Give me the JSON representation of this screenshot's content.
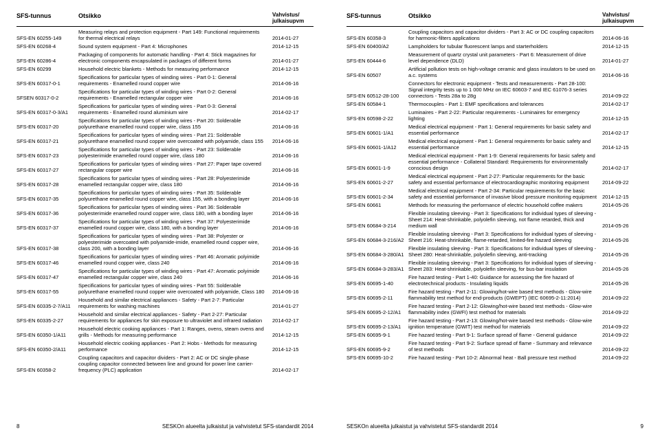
{
  "headers": {
    "code": "SFS-tunnus",
    "title": "Otsikko",
    "date_line1": "Vahvistus/",
    "date_line2": "julkaisupvm"
  },
  "footer_text": "SESKOn alueelta julkaistut ja vahvistetut SFS-standardit 2014",
  "left_page_num": "8",
  "right_page_num": "9",
  "left": [
    {
      "c": "SFS-EN 60255-149",
      "t": "Measuring relays and protection equipment - Part 149: Functional requirements for thermal electrical relays",
      "d": "2014-01-27"
    },
    {
      "c": "SFS-EN 60268-4",
      "t": "Sound system equipment - Part 4: Microphones",
      "d": "2014-12-15"
    },
    {
      "c": "SFS-EN 60286-4",
      "t": "Packaging of components for automatic handling - Part 4: Stick magazines for electronic components encapsulated in packages of different forms",
      "d": "2014-01-27"
    },
    {
      "c": "SFS-EN 60299",
      "t": "Household electric blankets - Methods for measuring performance",
      "d": "2014-12-15"
    },
    {
      "c": "SFS-EN 60317-0-1",
      "t": "Specifications for particular types of winding wires - Part 0-1: General requirements - Enamelled round copper wire",
      "d": "2014-06-16"
    },
    {
      "c": "SFSEN 60317-0-2",
      "t": "Specifications for particular types of winding wires - Part 0-2: General requirements - Enamelled rectangular copper wire",
      "d": "2014-06-16"
    },
    {
      "c": "SFS-EN 60317-0-3/A1",
      "t": "Specifications for particular types of winding wires - Part 0-3: General requirements - Enamelled round aluminium wire",
      "d": "2014-02-17"
    },
    {
      "c": "SFS-EN 60317-20",
      "t": "Specifications for particular types of winding wires - Part 20: Solderable polyurethane enamelled round copper wire, class 155",
      "d": "2014-06-16"
    },
    {
      "c": "SFS-EN 60317-21",
      "t": "Specifications for particular types of winding wires - Part 21: Solderable polyurethane enamelled round copper wire overcoated with polyamide, class 155",
      "d": "2014-06-16"
    },
    {
      "c": "SFS-EN 60317-23",
      "t": "Specifications for particular types of winding wires - Part 23: Solderable polyesterimide enamelled round copper wire, class 180",
      "d": "2014-06-16"
    },
    {
      "c": "SFS-EN 60317-27",
      "t": "Specifications for particular types of winding wires - Part 27: Paper tape covered rectangular copper wire",
      "d": "2014-06-16"
    },
    {
      "c": "SFS-EN 60317-28",
      "t": "Specifications for particular types of winding wires - Part 28: Polyesterimide enamelled rectangular copper wire, class 180",
      "d": "2014-06-16"
    },
    {
      "c": "SFS-EN 60317-35",
      "t": "Specifications for particular types of winding wires - Part 35: Solderable polyurethane enamelled round copper wire, class 155, with a bonding layer",
      "d": "2014-06-16"
    },
    {
      "c": "SFS-EN 60317-36",
      "t": "Specifications for particular types of winding wires - Part 36: Solderable polyesterimide enamelled round copper wire, class 180, with a bonding layer",
      "d": "2014-06-16"
    },
    {
      "c": "SFS-EN 60317-37",
      "t": "Specifications for particular types of winding wires - Part 37: Polyesterimide enamelled round copper wire, class 180, with a bonding layer",
      "d": "2014-06-16"
    },
    {
      "c": "SFS-EN 60317-38",
      "t": "Specifications for particular types of winding wires - Part 38: Polyester or polyesterimide overcoated with polyamide-imide, enamelled round copper wire, class 200, with a bonding layer",
      "d": "2014-06-16"
    },
    {
      "c": "SFS-EN 60317-46",
      "t": "Specifications for particular types of winding wires - Part 46: Aromatic polyimide enamelled round copper wire, class 240",
      "d": "2014-06-16"
    },
    {
      "c": "SFS-EN 60317-47",
      "t": "Specifications for particular types of winding wires - Part 47: Aromatic polyimide enamelled rectangular copper wire, class 240",
      "d": "2014-06-16"
    },
    {
      "c": "SFS-EN 60317-55",
      "t": "Specifications for particular types of winding wires - Part 55: Solderable polyurethane enamelled round copper wire overcoated with polyamide, Class 180",
      "d": "2014-06-16"
    },
    {
      "c": "SFS-EN 60335-2-7/A11",
      "t": "Household and similar electrical appliances - Safety - Part 2-7: Particular requirements for washing machines",
      "d": "2014-01-27"
    },
    {
      "c": "SFS-EN 60335-2-27",
      "t": "Household and similar electrical appliances - Safety - Part 2-27: Particular requirements for appliances for skin exposure to ultraviolet and infrared radiation",
      "d": "2014-02-17"
    },
    {
      "c": "SFS-EN 60350-1/A11",
      "t": "Household electric cooking appliances - Part 1: Ranges, ovens, steam ovens and grills - Methods for measuring performance",
      "d": "2014-12-15"
    },
    {
      "c": "SFS-EN 60350-2/A11",
      "t": "Household electric cooking appliances - Part 2: Hobs - Methods for measuring performance",
      "d": "2014-12-15"
    },
    {
      "c": "SFS-EN 60358-2",
      "t": "Coupling capacitors and capacitor dividers - Part 2: AC or DC single-phase coupling capacitor connected between line and ground for power line carrier-frequency (PLC) application",
      "d": "2014-02-17"
    }
  ],
  "right": [
    {
      "c": "SFS-EN 60358-3",
      "t": "Coupling capacitors and capacitor dividers - Part 3: AC or DC coupling capacitors for harmonic-filters applications",
      "d": "2014-06-16"
    },
    {
      "c": "SFS-EN 60400/A2",
      "t": "Lampholders for tubular fluorescent lamps and starterholders",
      "d": "2014-12-15"
    },
    {
      "c": "SFS-EN 60444-6",
      "t": "Measurement of quartz crystal unit parameters - Part 6: Measurement of drive level dependence (DLD)",
      "d": "2014-01-27"
    },
    {
      "c": "SFS-EN 60507",
      "t": "Artificial pollution tests on high-voltage ceramic and glass insulators to be used on a.c. systems",
      "d": "2014-06-16"
    },
    {
      "c": "SFS-EN 60512-28-100",
      "t": "Connectors for electronic equipment - Tests and measurements - Part 28-100: Signal integrity tests up to 1 000 MHz on IEC 60603-7 and IEC 61076-3 series connectors - Tests 28a to 28g",
      "d": "2014-09-22"
    },
    {
      "c": "SFS-EN 60584-1",
      "t": "Thermocouples - Part 1: EMF specifications and tolerances",
      "d": "2014-02-17"
    },
    {
      "c": "SFS-EN 60598-2-22",
      "t": "Luminaires - Part 2-22: Particular requirements - Luminaires for emergency lighting",
      "d": "2014-12-15"
    },
    {
      "c": "SFS-EN 60601-1/A1",
      "t": "Medical electrical equipment - Part 1: General requirements for basic safety and essential performance",
      "d": "2014-02-17"
    },
    {
      "c": "SFS-EN 60601-1/A12",
      "t": "Medical electrical equipment - Part 1: General requirements for basic safety and essential performance",
      "d": "2014-12-15"
    },
    {
      "c": "SFS-EN 60601-1-9",
      "t": "Medical electrical equipment - Part 1-9: General requirements for basic safety and essential performance - Collateral Standard: Requirements for environmentally conscious design",
      "d": "2014-02-17"
    },
    {
      "c": "SFS-EN 60601-2-27",
      "t": "Medical electrical equipment - Part 2-27: Particular requirements for the basic safety and essential performance of electrocardiographic monitoring equipment",
      "d": "2014-09-22"
    },
    {
      "c": "SFS-EN 60601-2-34",
      "t": "Medical electrical equipment - Part 2-34: Particular requirements for the basic safety and essential performance of invasive blood pressure monitoring equipment",
      "d": "2014-12-15"
    },
    {
      "c": "SFS-EN 60661",
      "t": "Methods for measuring the performance of electric household coffee makers",
      "d": "2014-05-26"
    },
    {
      "c": "SFS-EN 60684-3-214",
      "t": "Flexible insulating sleeving - Part 3: Specifications for individual types of sleeving - Sheet 214: Heat-shrinkable, polyolefin sleeving, not flame retarded, thick and medium wall",
      "d": "2014-05-26"
    },
    {
      "c": "SFS-EN 60684-3-216/A2",
      "t": "Flexible insulating sleeving - Part 3: Specifications for individual types of sleeving - Sheet 216: Heat-shrinkable, flame-retarded, limited-fire hazard sleeving",
      "d": "2014-05-26"
    },
    {
      "c": "SFS-EN 60684-3-280/A1",
      "t": "Flexible insulating sleeving - Part 3: Specifications for individual types of sleeving - Sheet 280: Heat-shrinkable, polyolefin sleeving, anti-tracking",
      "d": "2014-05-26"
    },
    {
      "c": "SFS-EN 60684-3-283/A1",
      "t": "Flexible insulating sleeving - Part 3: Specifications for individual types of sleeving - Sheet 283: Heat-shrinkable, polyolefin sleeving, for bus-bar insulation",
      "d": "2014-05-26"
    },
    {
      "c": "SFS-EN 60695-1-40",
      "t": "Fire hazard testing - Part 1-40: Guidance for assessing the fire hazard of electrotechnical products - Insulating liquids",
      "d": "2014-05-26"
    },
    {
      "c": "SFS-EN 60695-2-11",
      "t": "Fire hazard testing - Part 2-11: Glowing/hot-wire based test methods - Glow-wire flammability test method for end-products (GWEPT) (IEC 60695-2-11:2014)",
      "d": "2014-09-22"
    },
    {
      "c": "SFS-EN 60695-2-12/A1",
      "t": "Fire hazard testing - Part 2-12: Glowing/hot-wire based test methods - Glow-wire flammability index (GWFI) test method for materials",
      "d": "2014-09-22"
    },
    {
      "c": "SFS-EN 60695-2-13/A1",
      "t": "Fire hazard testing - Part 2-13: Glowing/hot-wire based test methods - Glow-wire ignition temperature (GWIT) test method for materials",
      "d": "2014-09-22"
    },
    {
      "c": "SFS-EN 60695-9-1",
      "t": "Fire hazard testing - Part 9-1: Surface spread of flame - General guidance",
      "d": "2014-09-22"
    },
    {
      "c": "SFS-EN 60695-9-2",
      "t": "Fire hazard testing - Part 9-2: Surface spread of flame - Summary and relevance of test methods",
      "d": "2014-09-22"
    },
    {
      "c": "SFS-EN 60695-10-2",
      "t": "Fire hazard testing - Part 10-2: Abnormal heat - Ball pressure test method",
      "d": "2014-09-22"
    }
  ]
}
